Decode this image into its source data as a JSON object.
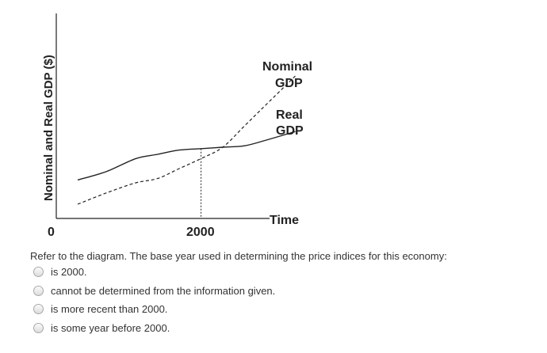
{
  "chart_data": {
    "type": "line",
    "ylabel": "Nominal and Real GDP ($)",
    "xlabel": "Time",
    "origin_label": "0",
    "x_tick_label": "2000",
    "ylim": [
      0,
      100
    ],
    "x": [
      0,
      20,
      40,
      55,
      70,
      85,
      100,
      115,
      130,
      150
    ],
    "series": [
      {
        "name_lines": [
          "Nominal",
          "GDP"
        ],
        "style": "dashed",
        "values": [
          10,
          18,
          25,
          28,
          35,
          42,
          50,
          65,
          80,
          100
        ]
      },
      {
        "name_lines": [
          "Real",
          "GDP"
        ],
        "style": "solid",
        "values": [
          27,
          33,
          42,
          45,
          48,
          49,
          50,
          51,
          55,
          61
        ]
      }
    ],
    "reference_x": 85
  },
  "question": {
    "prompt": "Refer to the diagram. The base year used in determining the price indices for this economy:",
    "options": [
      "is 2000.",
      "cannot be determined from the information given.",
      "is more recent than 2000.",
      "is some year before 2000."
    ]
  }
}
